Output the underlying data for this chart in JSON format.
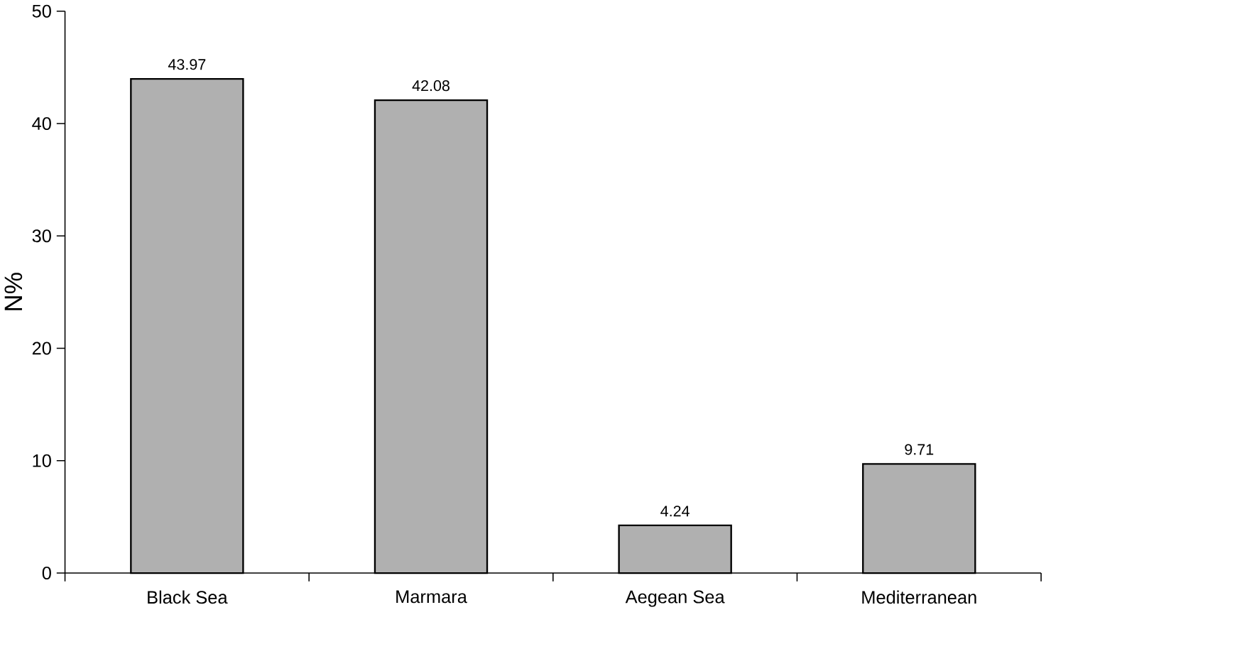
{
  "chart_data": {
    "type": "bar",
    "ylabel": "N%",
    "categories": [
      "Black Sea",
      "Marmara",
      "Aegean Sea",
      "Mediterranean"
    ],
    "values": [
      43.97,
      42.08,
      4.24,
      9.71
    ],
    "color": "#b0b0b0",
    "ylim": [
      0,
      50
    ],
    "yticks": [
      0,
      10,
      20,
      30,
      40,
      50
    ],
    "data_labels": true
  }
}
